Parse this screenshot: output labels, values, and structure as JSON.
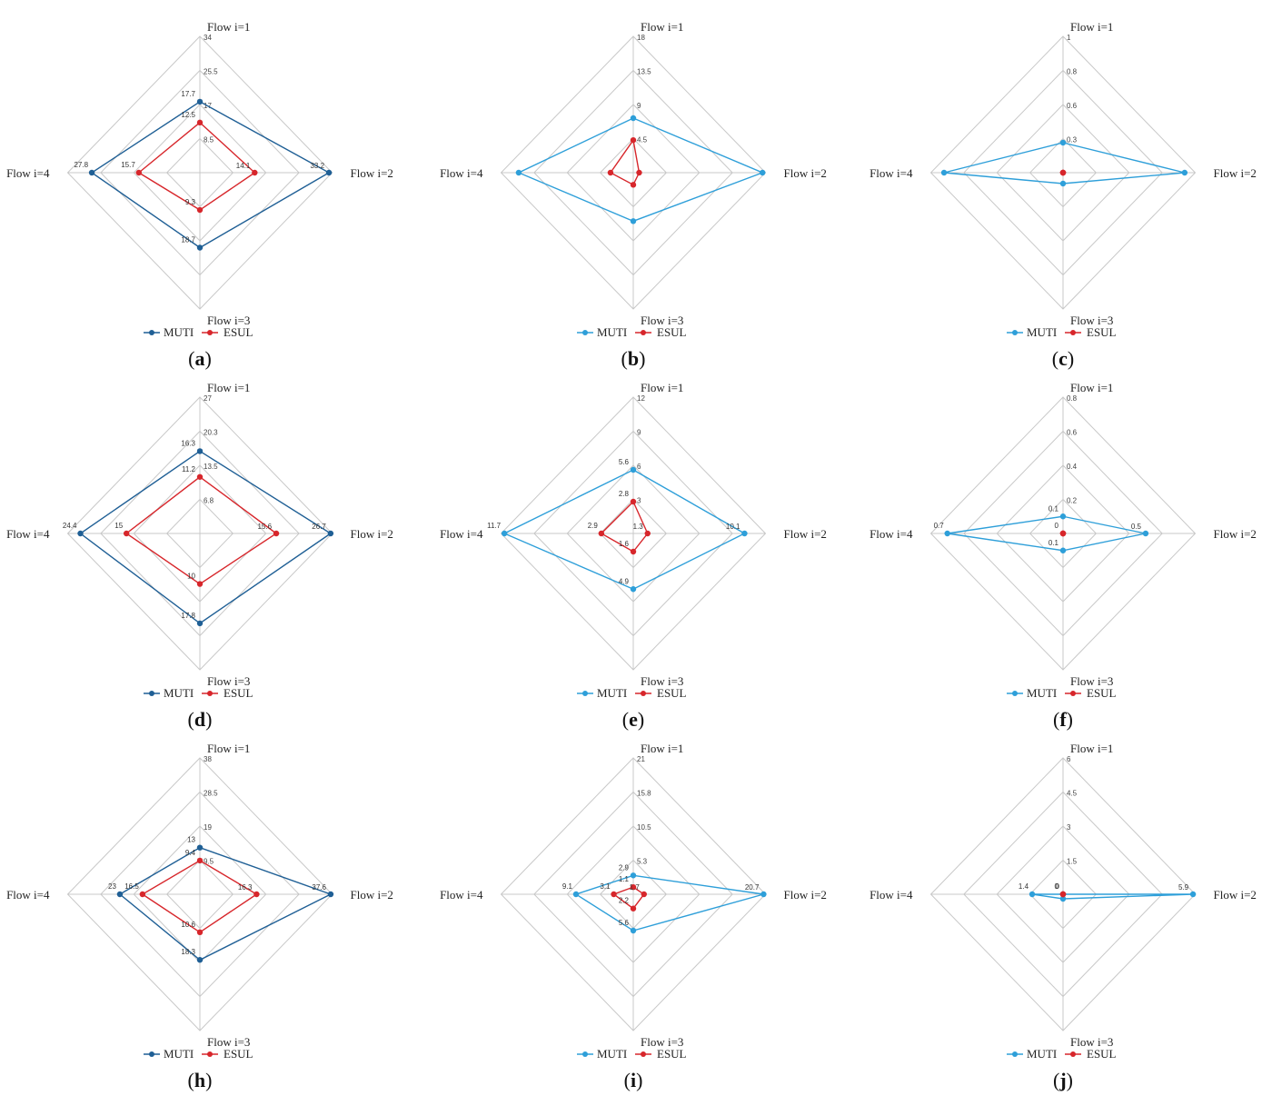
{
  "colors": {
    "muti_dark": "#1f5f95",
    "muti_light": "#2e9fd9",
    "esul": "#d7262b",
    "grid": "#c8c8c8"
  },
  "chart_data": [
    {
      "type": "radar",
      "caption": "a",
      "axes": [
        "Flow i=1",
        "Flow i=2",
        "Flow i=3",
        "Flow i=4"
      ],
      "max": 34,
      "ticks": [
        "34",
        "25.5",
        "17",
        "8.5"
      ],
      "legend": [
        "MUTI",
        "ESUL"
      ],
      "muti_color": "dark",
      "series": [
        {
          "name": "MUTI",
          "values": [
            17.7,
            33.2,
            18.7,
            27.8
          ],
          "labels": [
            "17.7",
            "33.2",
            "18.7",
            "27.8"
          ]
        },
        {
          "name": "ESUL",
          "values": [
            12.5,
            14.1,
            9.3,
            15.7
          ],
          "labels": [
            "12.5",
            "14.1",
            "9.3",
            "15.7"
          ]
        }
      ]
    },
    {
      "type": "radar",
      "caption": "b",
      "axes": [
        "Flow i=1",
        "Flow i=2",
        "Flow i=3",
        "Flow i=4"
      ],
      "max": 18,
      "ticks": [
        "18",
        "13.5",
        "9",
        "4.5"
      ],
      "legend": [
        "MUTI",
        "ESUL"
      ],
      "muti_color": "light",
      "series": [
        {
          "name": "MUTI",
          "values": [
            7.2,
            17.6,
            6.4,
            15.6
          ],
          "labels": []
        },
        {
          "name": "ESUL",
          "values": [
            4.3,
            0.8,
            1.6,
            3.1
          ],
          "labels": []
        }
      ]
    },
    {
      "type": "radar",
      "caption": "c",
      "axes": [
        "Flow i=1",
        "Flow i=2",
        "Flow i=3",
        "Flow i=4"
      ],
      "max": 1,
      "ticks": [
        "1",
        "0.8",
        "0.6",
        "0.3"
      ],
      "legend": [
        "MUTI",
        "ESUL"
      ],
      "muti_color": "light",
      "series": [
        {
          "name": "MUTI",
          "values": [
            0.22,
            0.92,
            0.08,
            0.9
          ],
          "labels": []
        },
        {
          "name": "ESUL",
          "values": [
            0,
            0,
            0,
            0
          ],
          "labels": []
        }
      ]
    },
    {
      "type": "radar",
      "caption": "d",
      "axes": [
        "Flow i=1",
        "Flow i=2",
        "Flow i=3",
        "Flow i=4"
      ],
      "max": 27,
      "ticks": [
        "27",
        "20.3",
        "13.5",
        "6.8"
      ],
      "legend": [
        "MUTI",
        "ESUL"
      ],
      "muti_color": "dark",
      "series": [
        {
          "name": "MUTI",
          "values": [
            16.3,
            26.7,
            17.8,
            24.4
          ],
          "labels": [
            "16.3",
            "26.7",
            "17.8",
            "24.4"
          ]
        },
        {
          "name": "ESUL",
          "values": [
            11.2,
            15.6,
            10,
            15
          ],
          "labels": [
            "11.2",
            "15.6",
            "10",
            "15"
          ]
        }
      ]
    },
    {
      "type": "radar",
      "caption": "e",
      "axes": [
        "Flow i=1",
        "Flow i=2",
        "Flow i=3",
        "Flow i=4"
      ],
      "max": 12,
      "ticks": [
        "12",
        "9",
        "6",
        "3"
      ],
      "legend": [
        "MUTI",
        "ESUL"
      ],
      "muti_color": "light",
      "series": [
        {
          "name": "MUTI",
          "values": [
            5.6,
            10.1,
            4.9,
            11.7
          ],
          "labels": [
            "5.6",
            "10.1",
            "4.9",
            "11.7"
          ]
        },
        {
          "name": "ESUL",
          "values": [
            2.8,
            1.3,
            1.6,
            2.9
          ],
          "labels": [
            "2.8",
            "1.3",
            "1.6",
            "2.9"
          ]
        }
      ]
    },
    {
      "type": "radar",
      "caption": "f",
      "axes": [
        "Flow i=1",
        "Flow i=2",
        "Flow i=3",
        "Flow i=4"
      ],
      "max": 0.8,
      "ticks": [
        "0.8",
        "0.6",
        "0.4",
        "0.2"
      ],
      "legend": [
        "MUTI",
        "ESUL"
      ],
      "muti_color": "light",
      "series": [
        {
          "name": "MUTI",
          "values": [
            0.1,
            0.5,
            0.1,
            0.7
          ],
          "labels": [
            "0.1",
            "0.5",
            "0.1",
            "0.7"
          ]
        },
        {
          "name": "ESUL",
          "values": [
            0,
            0,
            0,
            0
          ],
          "labels": [
            "0",
            "",
            "",
            ""
          ]
        }
      ]
    },
    {
      "type": "radar",
      "caption": "h",
      "axes": [
        "Flow i=1",
        "Flow i=2",
        "Flow i=3",
        "Flow i=4"
      ],
      "max": 38,
      "ticks": [
        "38",
        "28.5",
        "19",
        "9.5"
      ],
      "legend": [
        "MUTI",
        "ESUL"
      ],
      "muti_color": "dark",
      "series": [
        {
          "name": "MUTI",
          "values": [
            13,
            37.6,
            18.3,
            23
          ],
          "labels": [
            "13",
            "37.6",
            "18.3",
            "23"
          ]
        },
        {
          "name": "ESUL",
          "values": [
            9.4,
            16.3,
            10.6,
            16.5
          ],
          "labels": [
            "9.4",
            "16.3",
            "10.6",
            "16.5"
          ]
        }
      ]
    },
    {
      "type": "radar",
      "caption": "i",
      "axes": [
        "Flow i=1",
        "Flow i=2",
        "Flow i=3",
        "Flow i=4"
      ],
      "max": 21,
      "ticks": [
        "21",
        "15.8",
        "10.5",
        "5.3"
      ],
      "legend": [
        "MUTI",
        "ESUL"
      ],
      "muti_color": "light",
      "series": [
        {
          "name": "MUTI",
          "values": [
            2.9,
            20.7,
            5.6,
            9.1
          ],
          "labels": [
            "2.9",
            "20.7",
            "5.6",
            "9.1"
          ]
        },
        {
          "name": "ESUL",
          "values": [
            1.1,
            1.7,
            2.2,
            3.1
          ],
          "labels": [
            "1.1",
            "1.7",
            "2.2",
            "3.1"
          ]
        }
      ]
    },
    {
      "type": "radar",
      "caption": "j",
      "axes": [
        "Flow i=1",
        "Flow i=2",
        "Flow i=3",
        "Flow i=4"
      ],
      "max": 6,
      "ticks": [
        "6",
        "4.5",
        "3",
        "1.5"
      ],
      "legend": [
        "MUTI",
        "ESUL"
      ],
      "muti_color": "light",
      "series": [
        {
          "name": "MUTI",
          "values": [
            0,
            5.9,
            0.2,
            1.4
          ],
          "labels": [
            "",
            "5.9",
            "",
            "1.4"
          ]
        },
        {
          "name": "ESUL",
          "values": [
            0,
            0,
            0,
            0
          ],
          "labels": [
            "0",
            "",
            "",
            "0"
          ]
        }
      ]
    }
  ]
}
